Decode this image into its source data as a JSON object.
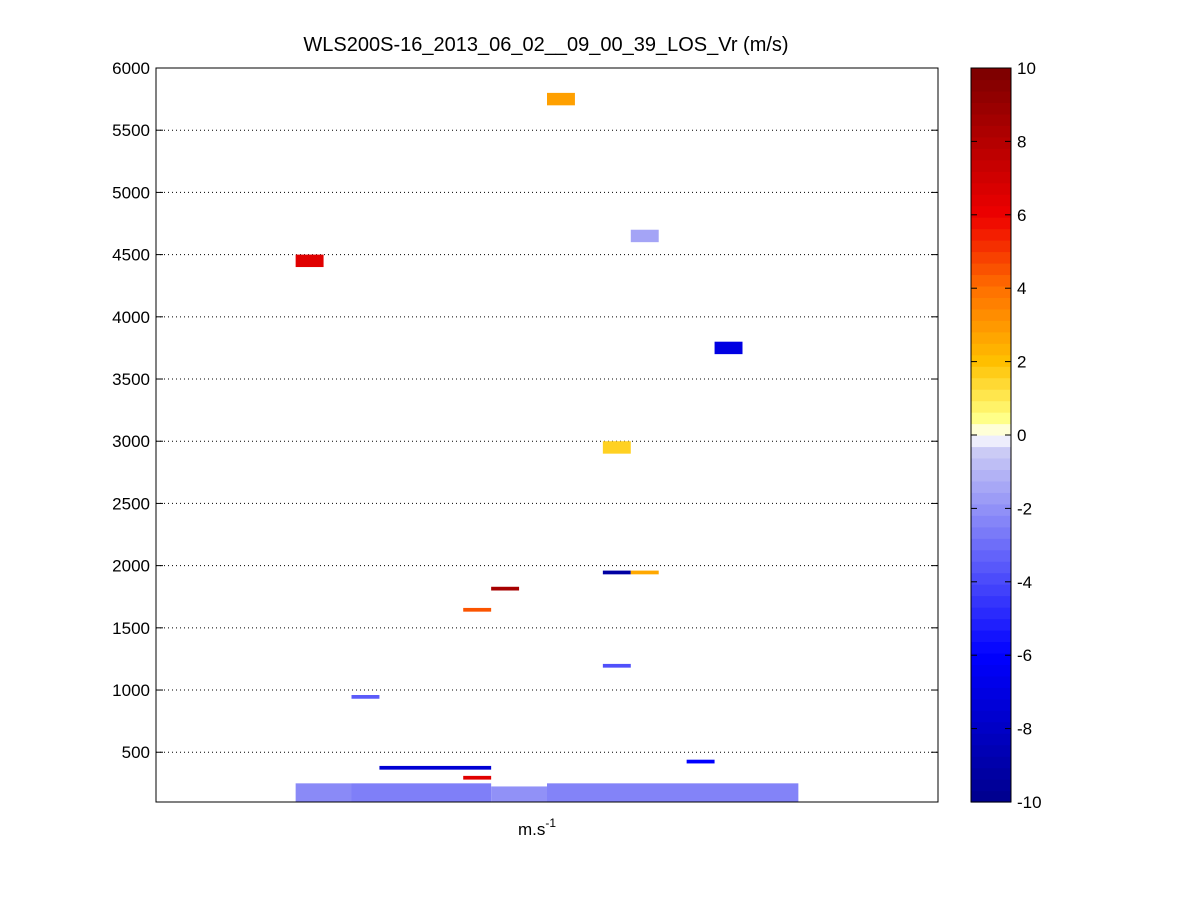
{
  "chart_data": {
    "type": "heatmap",
    "title": "WLS200S-16_2013_06_02__09_00_39_LOS_Vr (m/s)",
    "xlabel": "m.s",
    "xlabel_superscript": "-1",
    "ylabel": "",
    "ylim": [
      100,
      6000
    ],
    "yticks": [
      500,
      1000,
      1500,
      2000,
      2500,
      3000,
      3500,
      4000,
      4500,
      5000,
      5500,
      6000
    ],
    "xlim": [
      0,
      28
    ],
    "grid": "y-dotted",
    "colorbar": {
      "clim": [
        -10,
        10
      ],
      "ticks": [
        -10,
        -8,
        -6,
        -4,
        -2,
        0,
        2,
        4,
        6,
        8,
        10
      ],
      "colormap": [
        {
          "v": -10,
          "color": "#00008b"
        },
        {
          "v": -6,
          "color": "#0000ff"
        },
        {
          "v": -0.5,
          "color": "#c8c8f4"
        },
        {
          "v": 0,
          "color": "#ffffff"
        },
        {
          "v": 0.5,
          "color": "#ffff80"
        },
        {
          "v": 2,
          "color": "#ffc000"
        },
        {
          "v": 4,
          "color": "#ff7000"
        },
        {
          "v": 6,
          "color": "#ee0000"
        },
        {
          "v": 10,
          "color": "#7a0000"
        }
      ]
    },
    "cells": [
      {
        "x0": 14,
        "x1": 15,
        "y0": 5700,
        "y1": 5800,
        "v": 2.8
      },
      {
        "x0": 17,
        "x1": 18,
        "y0": 4600,
        "y1": 4700,
        "v": -1.5
      },
      {
        "x0": 5,
        "x1": 6,
        "y0": 4400,
        "y1": 4500,
        "v": 6.5
      },
      {
        "x0": 20,
        "x1": 21,
        "y0": 3700,
        "y1": 3800,
        "v": -7
      },
      {
        "x0": 16,
        "x1": 17,
        "y0": 2900,
        "y1": 3000,
        "v": 1.6
      },
      {
        "x0": 16,
        "x1": 17,
        "y0": 1930,
        "y1": 1960,
        "v": -9.2
      },
      {
        "x0": 17,
        "x1": 18,
        "y0": 1930,
        "y1": 1960,
        "v": 2.6
      },
      {
        "x0": 12,
        "x1": 13,
        "y0": 1800,
        "y1": 1830,
        "v": 8.5
      },
      {
        "x0": 11,
        "x1": 12,
        "y0": 1630,
        "y1": 1660,
        "v": 4.5
      },
      {
        "x0": 16,
        "x1": 17,
        "y0": 1180,
        "y1": 1210,
        "v": -3.8
      },
      {
        "x0": 7,
        "x1": 8,
        "y0": 930,
        "y1": 960,
        "v": -3.5
      },
      {
        "x0": 8,
        "x1": 12,
        "y0": 360,
        "y1": 390,
        "v": -7.5
      },
      {
        "x0": 19,
        "x1": 20,
        "y0": 410,
        "y1": 440,
        "v": -6
      },
      {
        "x0": 11,
        "x1": 12,
        "y0": 280,
        "y1": 310,
        "v": 6.5
      },
      {
        "x0": 5,
        "x1": 7,
        "y0": 100,
        "y1": 250,
        "v": -2.2
      },
      {
        "x0": 7,
        "x1": 12,
        "y0": 100,
        "y1": 250,
        "v": -2.5
      },
      {
        "x0": 12,
        "x1": 14,
        "y0": 100,
        "y1": 225,
        "v": -2.0
      },
      {
        "x0": 14,
        "x1": 23,
        "y0": 100,
        "y1": 250,
        "v": -2.4
      }
    ]
  }
}
